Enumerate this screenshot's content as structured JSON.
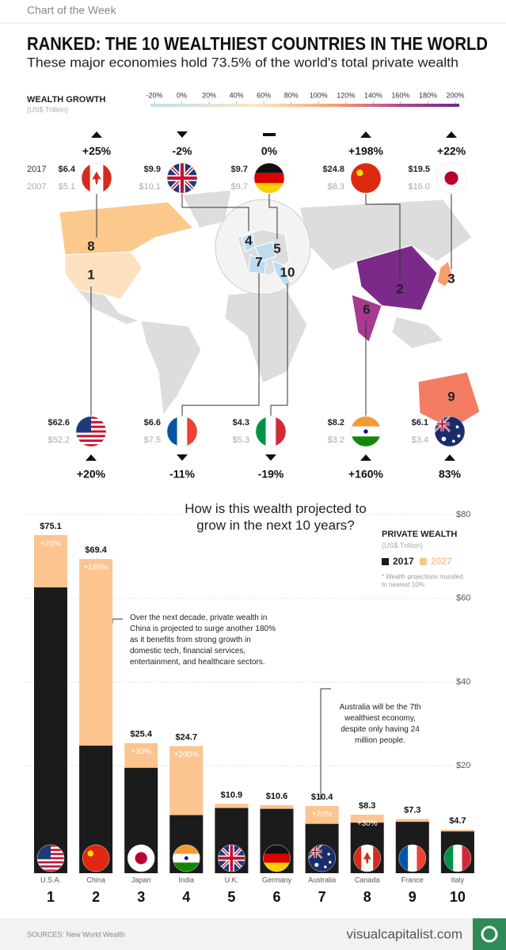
{
  "header": {
    "kicker": "Chart of the Week",
    "title": "RANKED: THE 10 WEALTHIEST COUNTRIES IN THE WORLD",
    "subtitle": "These major economies hold 73.5% of the world's total private wealth"
  },
  "growth_scale": {
    "title": "WEALTH GROWTH",
    "unit": "(US$ Trillion)",
    "lim": [
      -20,
      200
    ],
    "ticks": [
      {
        "value": -20,
        "label": "-20%"
      },
      {
        "value": 0,
        "label": "0%"
      },
      {
        "value": 20,
        "label": "20%"
      },
      {
        "value": 40,
        "label": "40%"
      },
      {
        "value": 60,
        "label": "60%"
      },
      {
        "value": 80,
        "label": "80%"
      },
      {
        "value": 100,
        "label": "100%"
      },
      {
        "value": 120,
        "label": "120%"
      },
      {
        "value": 140,
        "label": "140%"
      },
      {
        "value": 160,
        "label": "160%"
      },
      {
        "value": 180,
        "label": "180%"
      },
      {
        "value": 200,
        "label": "200%"
      }
    ]
  },
  "map": {
    "row_labels": [
      "2017",
      "2007"
    ],
    "countries": [
      {
        "wealth_2017": "$6.4",
        "wealth_2007": "$5.1",
        "growth": 25,
        "growth_label": "+25%",
        "rank": 8
      },
      {
        "wealth_2017": "$9.9",
        "wealth_2007": "$10.1",
        "growth": -2,
        "growth_label": "-2%",
        "rank": 4
      },
      {
        "wealth_2017": "$9.7",
        "wealth_2007": "$9.7",
        "growth": 0,
        "growth_label": "0%",
        "rank": 5
      },
      {
        "wealth_2017": "$24.8",
        "wealth_2007": "$8.3",
        "growth": 198,
        "growth_label": "+198%",
        "rank": 2
      },
      {
        "wealth_2017": "$19.5",
        "wealth_2007": "$16.0",
        "growth": 22,
        "growth_label": "+22%",
        "rank": 3
      },
      {
        "wealth_2017": "$62.6",
        "wealth_2007": "$52.2",
        "growth": 20,
        "growth_label": "+20%",
        "rank": 1
      },
      {
        "wealth_2017": "$6.6",
        "wealth_2007": "$7.5",
        "growth": -11,
        "growth_label": "-11%",
        "rank": 7
      },
      {
        "wealth_2017": "$4.3",
        "wealth_2007": "$5.3",
        "growth": -19,
        "growth_label": "-19%",
        "rank": 10
      },
      {
        "wealth_2017": "$8.2",
        "wealth_2007": "$3.2",
        "growth": 160,
        "growth_label": "+160%",
        "rank": 6
      },
      {
        "wealth_2017": "$6.1",
        "wealth_2007": "$3.4",
        "growth": 83,
        "growth_label": "83%",
        "rank": 9
      }
    ]
  },
  "chart_data": {
    "type": "bar",
    "title": "How is this wealth projected to grow in the next 10 years?",
    "legend_title": "PRIVATE WEALTH",
    "legend_unit": "(US$ Trillion)",
    "note": "* Wealth projections rounded to nearest 10%",
    "categories": [
      "U.S.A.",
      "China",
      "Japan",
      "India",
      "U.K.",
      "Germany",
      "Australia",
      "Canada",
      "France",
      "Italy"
    ],
    "ranks": [
      1,
      2,
      3,
      4,
      5,
      6,
      7,
      8,
      9,
      10
    ],
    "series": [
      {
        "name": "2017",
        "color": "#1b1b1b",
        "values": [
          62.6,
          24.8,
          19.5,
          8.2,
          9.9,
          9.7,
          6.1,
          6.4,
          6.6,
          4.3
        ]
      },
      {
        "name": "2027",
        "color": "#fcc48f",
        "values": [
          75.1,
          69.4,
          25.4,
          24.7,
          10.9,
          10.6,
          10.4,
          8.3,
          7.3,
          4.7
        ],
        "value_labels": [
          "$75.1",
          "$69.4",
          "$25.4",
          "$24.7",
          "$10.9",
          "$10.6",
          "$10.4",
          "$8.3",
          "$7.3",
          "$4.7"
        ]
      }
    ],
    "growth_labels": [
      "+20%",
      "+180%",
      "+30%",
      "+200%",
      null,
      null,
      "+70%",
      "+30%",
      null,
      null
    ],
    "annotations": [
      "Over the next decade, private wealth in China is projected to surge another 180% as it benefits from strong growth in domestic tech, financial services, entertainment, and healthcare sectors.",
      "Australia will be the 7th wealthiest economy, despite only having 24 million people."
    ],
    "ylim": [
      0,
      80
    ],
    "yticks": [
      {
        "value": 20,
        "label": "$20"
      },
      {
        "value": 40,
        "label": "$40"
      },
      {
        "value": 60,
        "label": "$60"
      },
      {
        "value": 80,
        "label": "$80"
      }
    ],
    "grid": true
  },
  "footer": {
    "source": "SOURCES: New World Wealth",
    "site": "visualcapitalist.com"
  }
}
